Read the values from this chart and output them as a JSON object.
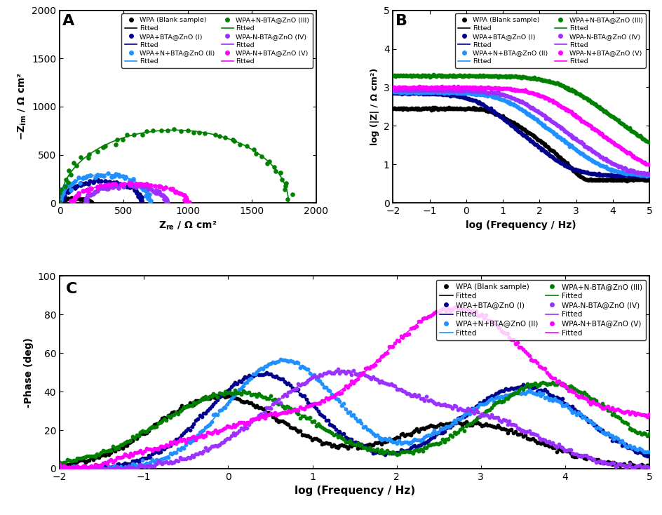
{
  "series_labels": [
    "WPA (Blank sample)",
    "WPA+BTA@ZnO (I)",
    "WPA+N+BTA@ZnO (II)",
    "WPA+N-BTA@ZnO (III)",
    "WPA-N-BTA@ZnO (IV)",
    "WPA-N+BTA@ZnO (V)"
  ],
  "colors": [
    "#000000",
    "#00008B",
    "#1E90FF",
    "#008000",
    "#9B30FF",
    "#FF00FF"
  ],
  "panel_labels": [
    "A",
    "B",
    "C"
  ],
  "fitted_label": "Fitted",
  "nyquist": {
    "xlim": [
      0,
      2000
    ],
    "ylim": [
      0,
      2000
    ],
    "xticks": [
      0,
      500,
      1000,
      1500,
      2000
    ],
    "yticks": [
      0,
      500,
      1000,
      1500,
      2000
    ],
    "xlabel": "Z_re / Ω cm²",
    "ylabel": "-Z_im / Ω cm²"
  },
  "bode_mag": {
    "xlim": [
      -2,
      5
    ],
    "ylim": [
      0,
      5
    ],
    "xticks": [
      -2,
      -1,
      0,
      1,
      2,
      3,
      4,
      5
    ],
    "yticks": [
      0,
      1,
      2,
      3,
      4,
      5
    ],
    "xlabel": "log (Frequency / Hz)",
    "ylabel": "log (|Z| / Ω cm²)"
  },
  "bode_phase": {
    "xlim": [
      -2,
      5
    ],
    "ylim": [
      0,
      100
    ],
    "xticks": [
      -2,
      -1,
      0,
      1,
      2,
      3,
      4,
      5
    ],
    "yticks": [
      0,
      20,
      40,
      60,
      80,
      100
    ],
    "xlabel": "log (Frequency / Hz)",
    "ylabel": "-Phase (deg)"
  },
  "dot_size": 14,
  "line_width": 1.2
}
